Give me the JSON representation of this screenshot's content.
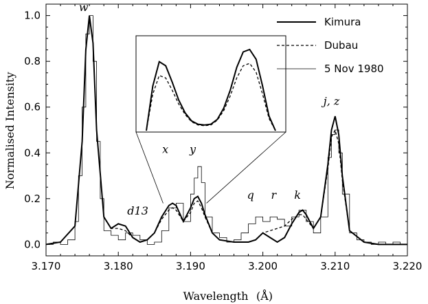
{
  "chart_data": {
    "type": "line",
    "xlabel": "Wavelength",
    "xunit": "(Å)",
    "ylabel": "Normalised Intensity",
    "xlim": [
      3.17,
      3.22
    ],
    "ylim": [
      -0.05,
      1.05
    ],
    "xticks": [
      "3.170",
      "3.180",
      "3.190",
      "3.200",
      "3.210",
      "3.220"
    ],
    "yticks": [
      "0.0",
      "0.2",
      "0.4",
      "0.6",
      "0.8",
      "1.0"
    ],
    "legend_position": "top-right",
    "series": [
      {
        "name": "Kimura",
        "style": "solid-thick",
        "x": [
          3.17,
          3.172,
          3.174,
          3.175,
          3.1755,
          3.176,
          3.1765,
          3.177,
          3.178,
          3.179,
          3.18,
          3.181,
          3.182,
          3.183,
          3.184,
          3.185,
          3.186,
          3.187,
          3.1875,
          3.188,
          3.189,
          3.19,
          3.1905,
          3.191,
          3.1915,
          3.192,
          3.193,
          3.194,
          3.196,
          3.198,
          3.199,
          3.2,
          3.201,
          3.202,
          3.203,
          3.204,
          3.205,
          3.2055,
          3.206,
          3.207,
          3.208,
          3.209,
          3.2095,
          3.21,
          3.2105,
          3.211,
          3.212,
          3.214,
          3.216,
          3.218,
          3.22
        ],
        "y": [
          0.0,
          0.01,
          0.08,
          0.45,
          0.85,
          1.0,
          0.88,
          0.5,
          0.12,
          0.07,
          0.09,
          0.08,
          0.03,
          0.01,
          0.02,
          0.05,
          0.12,
          0.17,
          0.18,
          0.17,
          0.1,
          0.16,
          0.2,
          0.21,
          0.18,
          0.13,
          0.05,
          0.02,
          0.01,
          0.01,
          0.02,
          0.05,
          0.03,
          0.01,
          0.03,
          0.09,
          0.14,
          0.15,
          0.13,
          0.07,
          0.12,
          0.35,
          0.5,
          0.56,
          0.48,
          0.3,
          0.06,
          0.01,
          0.0,
          0.0,
          0.0
        ]
      },
      {
        "name": "Dubau",
        "style": "dashed",
        "x": [
          3.17,
          3.172,
          3.174,
          3.175,
          3.1755,
          3.176,
          3.1765,
          3.177,
          3.178,
          3.179,
          3.18,
          3.181,
          3.182,
          3.183,
          3.184,
          3.185,
          3.186,
          3.187,
          3.1875,
          3.188,
          3.189,
          3.19,
          3.1905,
          3.191,
          3.1915,
          3.192,
          3.193,
          3.194,
          3.196,
          3.198,
          3.199,
          3.2,
          3.201,
          3.202,
          3.203,
          3.204,
          3.205,
          3.2055,
          3.206,
          3.207,
          3.208,
          3.209,
          3.2095,
          3.21,
          3.2105,
          3.211,
          3.212,
          3.214,
          3.216,
          3.218,
          3.22
        ],
        "y": [
          0.0,
          0.01,
          0.08,
          0.45,
          0.85,
          1.0,
          0.88,
          0.5,
          0.12,
          0.07,
          0.07,
          0.06,
          0.03,
          0.01,
          0.02,
          0.05,
          0.11,
          0.15,
          0.16,
          0.15,
          0.1,
          0.14,
          0.18,
          0.19,
          0.16,
          0.12,
          0.05,
          0.02,
          0.01,
          0.01,
          0.02,
          0.05,
          0.06,
          0.07,
          0.08,
          0.11,
          0.13,
          0.13,
          0.11,
          0.07,
          0.12,
          0.33,
          0.47,
          0.5,
          0.44,
          0.28,
          0.06,
          0.01,
          0.0,
          0.0,
          0.0
        ]
      },
      {
        "name": "5 Nov 1980",
        "style": "step-thin",
        "x": [
          3.17,
          3.171,
          3.172,
          3.173,
          3.174,
          3.1745,
          3.175,
          3.1755,
          3.176,
          3.1765,
          3.177,
          3.1775,
          3.178,
          3.179,
          3.18,
          3.181,
          3.182,
          3.183,
          3.184,
          3.185,
          3.186,
          3.187,
          3.188,
          3.189,
          3.19,
          3.1905,
          3.191,
          3.1915,
          3.192,
          3.193,
          3.194,
          3.195,
          3.196,
          3.197,
          3.198,
          3.199,
          3.2,
          3.201,
          3.202,
          3.203,
          3.204,
          3.205,
          3.206,
          3.207,
          3.208,
          3.209,
          3.2095,
          3.21,
          3.2105,
          3.211,
          3.212,
          3.213,
          3.214,
          3.215,
          3.216,
          3.217,
          3.218,
          3.219,
          3.22
        ],
        "y": [
          0.0,
          0.01,
          0.0,
          0.02,
          0.1,
          0.3,
          0.6,
          0.92,
          1.0,
          0.8,
          0.45,
          0.2,
          0.06,
          0.04,
          0.02,
          0.05,
          0.04,
          0.02,
          0.0,
          0.01,
          0.06,
          0.16,
          0.18,
          0.1,
          0.22,
          0.29,
          0.34,
          0.27,
          0.12,
          0.05,
          0.03,
          0.01,
          0.02,
          0.05,
          0.09,
          0.12,
          0.1,
          0.12,
          0.11,
          0.08,
          0.12,
          0.15,
          0.1,
          0.05,
          0.12,
          0.38,
          0.48,
          0.5,
          0.4,
          0.22,
          0.05,
          0.02,
          0.01,
          0.0,
          0.01,
          0.0,
          0.01,
          0.0,
          0.0
        ]
      }
    ],
    "annotations": [
      {
        "text": "w",
        "x": 3.1752,
        "y": 1.02
      },
      {
        "text": "d13",
        "x": 3.1827,
        "y": 0.13
      },
      {
        "text": "x",
        "x": 3.1865,
        "y": 0.4
      },
      {
        "text": "y",
        "x": 3.1903,
        "y": 0.4
      },
      {
        "text": "q",
        "x": 3.1983,
        "y": 0.2
      },
      {
        "text": "r",
        "x": 3.2015,
        "y": 0.2
      },
      {
        "text": "k",
        "x": 3.2048,
        "y": 0.2
      },
      {
        "text": "j, z",
        "x": 3.2095,
        "y": 0.61
      }
    ],
    "inset": {
      "description_ref": "zoom of x and y lines",
      "x": [
        0,
        0.05,
        0.1,
        0.15,
        0.2,
        0.25,
        0.3,
        0.35,
        0.4,
        0.45,
        0.5,
        0.55,
        0.6,
        0.65,
        0.7,
        0.75,
        0.8,
        0.85,
        0.9,
        0.95,
        1.0
      ],
      "kimura": [
        0.0,
        0.55,
        0.85,
        0.8,
        0.6,
        0.38,
        0.22,
        0.12,
        0.08,
        0.07,
        0.08,
        0.14,
        0.28,
        0.5,
        0.78,
        0.97,
        1.0,
        0.88,
        0.55,
        0.18,
        0.0
      ],
      "dubau": [
        0.0,
        0.45,
        0.68,
        0.65,
        0.5,
        0.33,
        0.2,
        0.11,
        0.07,
        0.06,
        0.07,
        0.13,
        0.25,
        0.43,
        0.65,
        0.8,
        0.83,
        0.72,
        0.45,
        0.15,
        0.0
      ]
    }
  }
}
